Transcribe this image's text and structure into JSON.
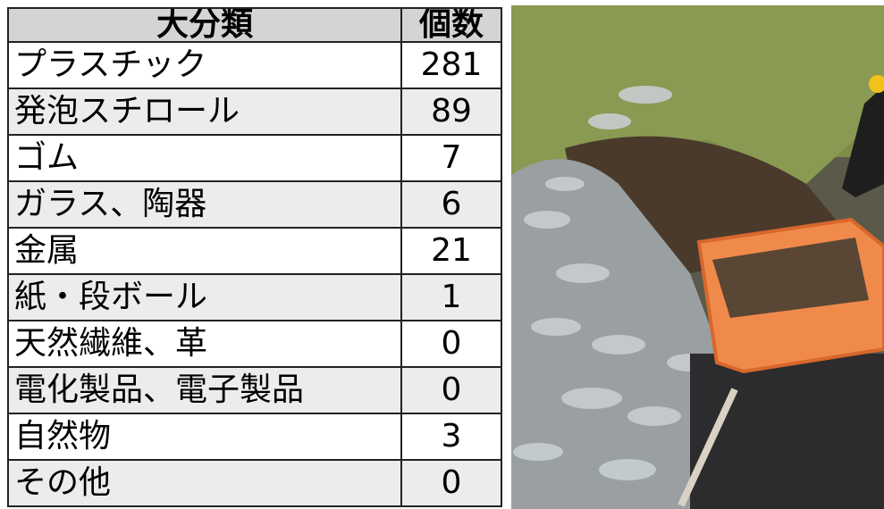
{
  "table": {
    "header": [
      "大分類",
      "個数"
    ],
    "rows": [
      [
        "プラスチック",
        281
      ],
      [
        "発泡スチロール",
        89
      ],
      [
        "ゴム",
        7
      ],
      [
        "ガラス、陶器",
        6
      ],
      [
        "金属",
        21
      ],
      [
        "紙・段ボール",
        1
      ],
      [
        "天然繊維、革",
        0
      ],
      [
        "電化製品、電子製品",
        0
      ],
      [
        "自然物",
        3
      ],
      [
        "その他",
        0
      ]
    ]
  }
}
